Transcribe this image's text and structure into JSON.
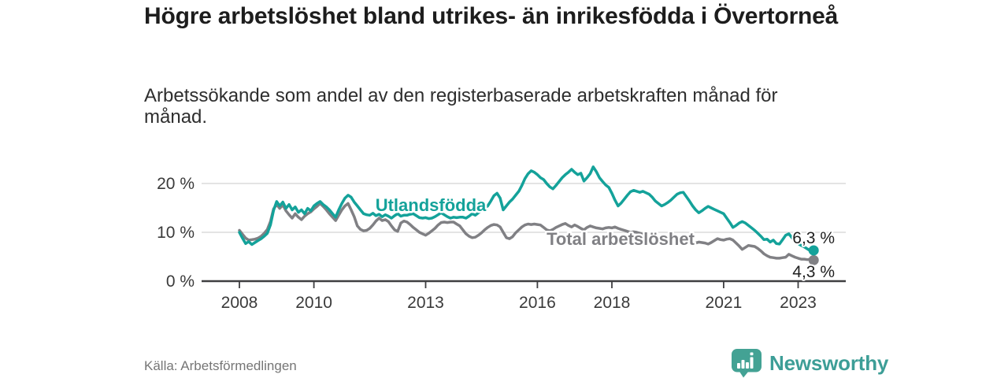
{
  "header": {
    "title": "Högre arbetslöshet bland utrikes- än inrikesfödda i Övertorneå",
    "subtitle": "Arbetssökande som andel av den registerbaserade arbetskraften månad för månad."
  },
  "footer": {
    "source": "Källa: Arbetsförmedlingen",
    "brand": "Newsworthy"
  },
  "colors": {
    "series_foreign_born": "#14a29a",
    "series_total": "#808084",
    "axis": "#3f3f41",
    "grid": "#dcdcdc",
    "tick_text": "#3a3a3a",
    "end_label_text": "#1f1f1f",
    "brand_teal": "#3d9e97",
    "brand_icon_teal": "#43a294",
    "background": "#ffffff"
  },
  "chart_data": {
    "type": "line",
    "title": "",
    "xlabel": "",
    "ylabel": "",
    "x_unit": "month",
    "x_start_year": 2008,
    "x_end_year": 2023.4167,
    "ylim": [
      0,
      24.5
    ],
    "grid": true,
    "legend_position": "inline-labels",
    "y_ticks": [
      {
        "value": 0,
        "label": "0 %"
      },
      {
        "value": 10,
        "label": "10 %"
      },
      {
        "value": 20,
        "label": "20 %"
      }
    ],
    "x_ticks": [
      {
        "value": 2008,
        "label": "2008"
      },
      {
        "value": 2010,
        "label": "2010"
      },
      {
        "value": 2013,
        "label": "2013"
      },
      {
        "value": 2016,
        "label": "2016"
      },
      {
        "value": 2018,
        "label": "2018"
      },
      {
        "value": 2021,
        "label": "2021"
      },
      {
        "value": 2023,
        "label": "2023"
      }
    ],
    "series": [
      {
        "name": "Total arbetslöshet",
        "color": "#808084",
        "end_label": "4,3 %",
        "end_value": 4.3,
        "values": [
          10.4,
          9.6,
          8.8,
          8.4,
          8.5,
          8.6,
          8.8,
          9.2,
          9.8,
          10.6,
          12.2,
          14.8,
          15.7,
          14.9,
          15.6,
          14.4,
          13.6,
          12.9,
          13.8,
          13.1,
          12.6,
          13.3,
          13.8,
          14.2,
          14.8,
          15.3,
          15.9,
          15.3,
          14.6,
          13.8,
          13.1,
          12.4,
          13.5,
          14.6,
          15.4,
          15.9,
          14.6,
          13.2,
          11.3,
          10.6,
          10.3,
          10.4,
          10.8,
          11.5,
          12.3,
          12.9,
          12.4,
          12.6,
          12.2,
          11.3,
          10.5,
          10.2,
          11.9,
          12.3,
          12.1,
          11.6,
          11.0,
          10.5,
          10.0,
          9.7,
          9.4,
          9.8,
          10.3,
          10.8,
          11.5,
          12.0,
          12.1,
          12.0,
          12.1,
          12.1,
          11.7,
          11.3,
          10.5,
          9.7,
          9.2,
          8.9,
          9.0,
          9.4,
          9.9,
          10.5,
          11.0,
          11.4,
          11.6,
          11.5,
          11.1,
          10.0,
          8.9,
          8.7,
          9.1,
          9.9,
          10.5,
          11.1,
          11.5,
          11.7,
          11.6,
          11.7,
          11.6,
          11.5,
          11.0,
          10.5,
          10.3,
          10.6,
          11.0,
          11.3,
          11.6,
          11.8,
          11.4,
          11.1,
          11.5,
          11.2,
          10.8,
          10.5,
          11.0,
          11.3,
          11.1,
          10.9,
          10.8,
          10.7,
          10.9,
          11.0,
          10.9,
          11.1,
          10.8,
          10.6,
          10.4,
          10.2,
          10.0,
          10.1,
          10.0,
          9.8,
          9.6,
          9.4,
          9.3,
          9.1,
          9.0,
          8.9,
          8.8,
          8.6,
          8.5,
          8.4,
          8.3,
          8.2,
          8.1,
          8.0,
          7.9,
          7.7,
          7.6,
          7.8,
          8.0,
          7.9,
          7.8,
          7.6,
          7.9,
          8.3,
          8.7,
          8.5,
          8.4,
          8.6,
          8.7,
          8.4,
          7.8,
          7.2,
          6.5,
          6.9,
          7.3,
          7.2,
          7.1,
          6.7,
          6.2,
          5.6,
          5.2,
          4.9,
          4.8,
          4.7,
          4.7,
          4.8,
          4.9,
          5.5,
          5.2,
          4.9,
          4.7,
          4.5,
          4.5,
          4.4,
          4.5,
          4.3
        ]
      },
      {
        "name": "Utlandsfödda",
        "color": "#14a29a",
        "end_label": "6,3 %",
        "end_value": 6.3,
        "values": [
          10.0,
          8.8,
          7.7,
          8.1,
          7.5,
          7.9,
          8.3,
          8.7,
          9.2,
          9.8,
          11.5,
          14.5,
          16.3,
          15.4,
          16.2,
          14.9,
          15.7,
          14.6,
          15.2,
          14.1,
          14.6,
          13.8,
          14.9,
          14.4,
          15.4,
          15.9,
          16.3,
          15.7,
          15.2,
          14.6,
          13.8,
          13.1,
          14.6,
          15.9,
          17.0,
          17.6,
          17.2,
          16.2,
          15.4,
          14.6,
          13.8,
          13.6,
          13.5,
          13.9,
          13.4,
          13.7,
          13.2,
          13.6,
          13.3,
          12.9,
          13.4,
          13.8,
          13.3,
          13.5,
          13.5,
          13.7,
          13.8,
          13.4,
          13.0,
          12.9,
          13.0,
          12.8,
          12.9,
          13.2,
          13.6,
          14.0,
          13.6,
          13.2,
          12.9,
          13.1,
          13.0,
          13.1,
          13.1,
          12.9,
          13.3,
          13.8,
          13.5,
          14.0,
          14.4,
          14.9,
          15.4,
          16.4,
          17.5,
          18.0,
          17.0,
          14.6,
          15.4,
          16.2,
          16.8,
          17.6,
          18.4,
          19.6,
          21.0,
          22.0,
          22.6,
          22.3,
          21.8,
          21.2,
          20.8,
          20.0,
          19.3,
          18.9,
          19.6,
          20.4,
          21.2,
          21.8,
          22.3,
          22.9,
          22.3,
          21.8,
          22.1,
          20.5,
          21.2,
          22.0,
          23.4,
          22.4,
          21.2,
          20.4,
          19.7,
          19.2,
          18.0,
          16.6,
          15.4,
          16.0,
          16.8,
          17.6,
          18.3,
          18.6,
          18.4,
          18.2,
          18.4,
          18.1,
          17.8,
          17.2,
          16.4,
          15.9,
          15.4,
          15.7,
          16.1,
          16.6,
          17.2,
          17.8,
          18.1,
          18.2,
          17.3,
          16.4,
          15.4,
          14.6,
          14.0,
          14.4,
          14.9,
          15.3,
          15.0,
          14.7,
          14.4,
          14.1,
          13.8,
          12.9,
          12.0,
          11.0,
          11.4,
          11.9,
          12.2,
          11.9,
          11.4,
          10.9,
          10.4,
          9.8,
          9.2,
          8.5,
          8.6,
          8.0,
          8.4,
          7.7,
          7.6,
          8.5,
          9.4,
          9.7,
          8.9,
          8.1,
          7.7,
          7.3,
          7.0,
          6.6,
          6.2,
          6.3
        ]
      }
    ]
  }
}
